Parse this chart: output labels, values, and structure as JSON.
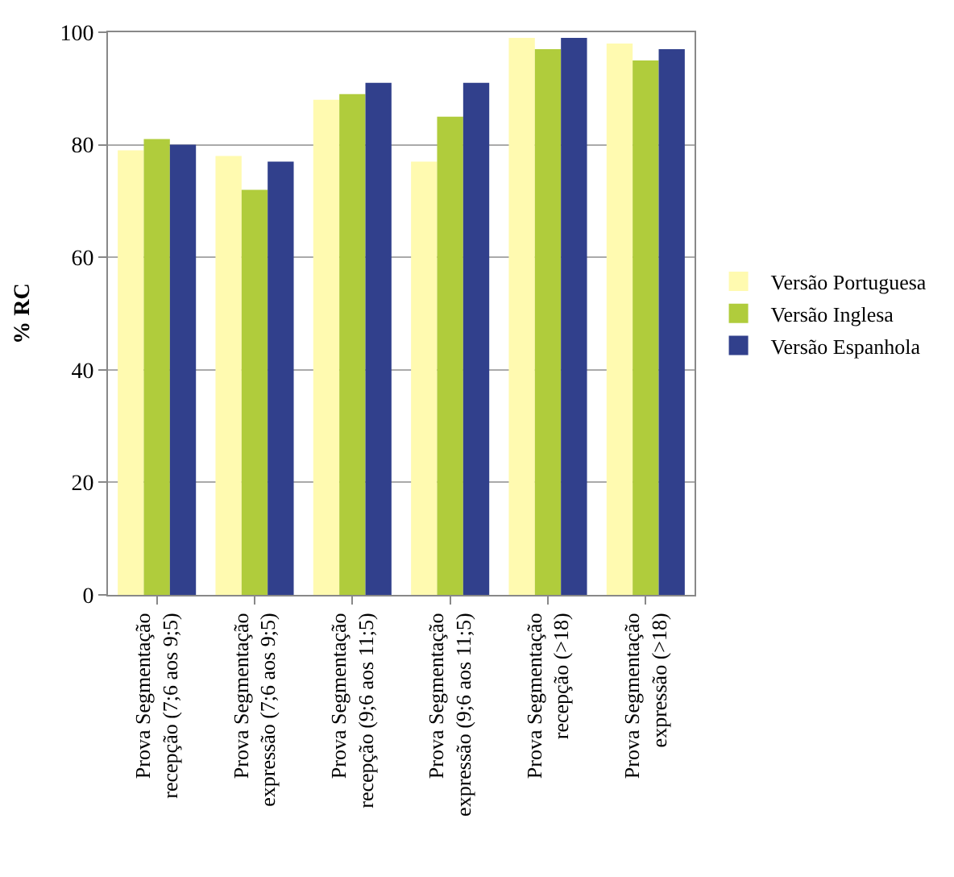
{
  "chart_data": {
    "type": "bar",
    "ylabel": "% RC",
    "categories": [
      "Prova Segmentação\nrecepção (7;6 aos 9;5)",
      "Prova Segmentação\nexpressão (7;6 aos 9;5)",
      "Prova Segmentação\nrecepção (9;6 aos 11;5)",
      "Prova Segmentação\nexpressão (9;6 aos 11;5)",
      "Prova Segmentação\nrecepção (>18)",
      "Prova Segmentação\nexpressão (>18)"
    ],
    "series": [
      {
        "name": "Versão Portuguesa",
        "color": "#fffab0",
        "values": [
          79,
          78,
          88,
          77,
          99,
          98
        ]
      },
      {
        "name": "Versão Inglesa",
        "color": "#b0cc3c",
        "values": [
          81,
          72,
          89,
          85,
          97,
          95
        ]
      },
      {
        "name": "Versão Espanhola",
        "color": "#31408c",
        "values": [
          80,
          77,
          91,
          91,
          99,
          97
        ]
      }
    ],
    "ylim": [
      0,
      100
    ],
    "yticks": [
      0,
      20,
      40,
      60,
      80,
      100
    ],
    "grid": "y",
    "legend": "right"
  }
}
